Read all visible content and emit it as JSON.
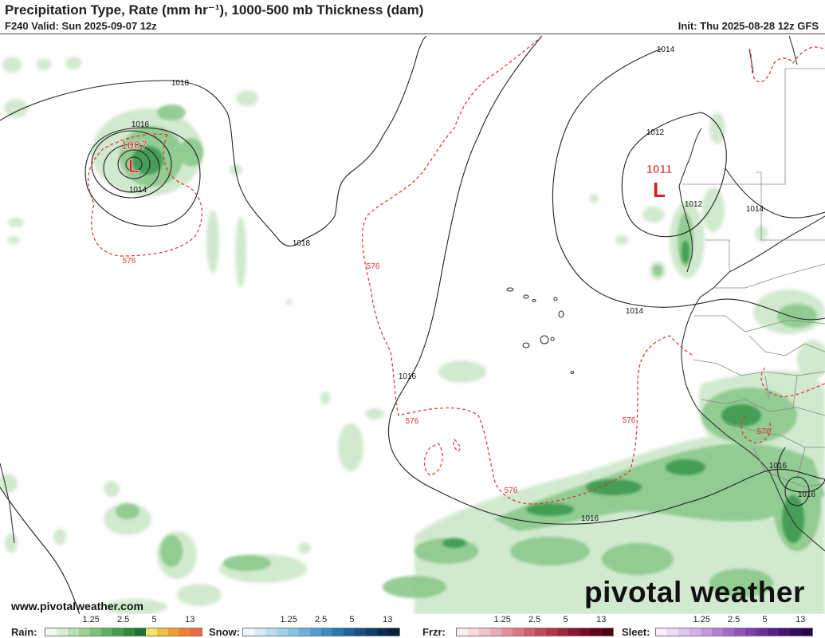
{
  "header": {
    "title": "Precipitation Type, Rate (mm hr⁻¹), 1000-500 mb Thickness (dam)",
    "valid": "F240 Valid: Sun 2025-09-07 12z",
    "init": "Init: Thu 2025-08-28 12z GFS"
  },
  "map": {
    "lows": [
      {
        "pressure": "1007",
        "symbol": "L"
      },
      {
        "pressure": "1011",
        "symbol": "L"
      }
    ],
    "isobar_labels": [
      "1018",
      "1016",
      "1014",
      "1018",
      "1014",
      "1012",
      "1012",
      "1014",
      "1014",
      "1016",
      "1016",
      "1016",
      "1016"
    ],
    "thickness_labels": [
      "576",
      "576",
      "576",
      "576",
      "576",
      "576"
    ],
    "colors": {
      "isobar": "#222222",
      "thickness": "#e03030",
      "rain_light": "#cfe8cc",
      "rain_mid": "#8cc98c",
      "rain_heavy": "#3d9a50",
      "coast": "#333333",
      "border": "#888888",
      "low_label": "#d42020"
    }
  },
  "footer": {
    "website": "www.pivotalweather.com",
    "brand": "pivotal weather"
  },
  "legend": [
    {
      "label": "Rain:",
      "ticks": [
        "1.25",
        "2.5",
        "5",
        "13"
      ],
      "colors": [
        "#f2faf0",
        "#d6efd0",
        "#b9e2b2",
        "#9bd394",
        "#7cc277",
        "#5fb05c",
        "#43a047",
        "#2e8b3a",
        "#1c7430",
        "#f7e36b",
        "#f2c040",
        "#f0a030",
        "#ee8030",
        "#f06a40"
      ]
    },
    {
      "label": "Snow:",
      "ticks": [
        "1.25",
        "2.5",
        "5",
        "13"
      ],
      "colors": [
        "#eef6fc",
        "#d6ebf7",
        "#bddff2",
        "#a2d2ec",
        "#86c2e4",
        "#6bb1db",
        "#519fd0",
        "#3c8bc2",
        "#2a77b1",
        "#1d629c",
        "#154f85",
        "#0f3e6d",
        "#0a2f57",
        "#062242"
      ]
    },
    {
      "label": "Frzr:",
      "ticks": [
        "1.25",
        "2.5",
        "5",
        "13"
      ],
      "colors": [
        "#fdeef0",
        "#f9d9de",
        "#f4c2ca",
        "#eeaab5",
        "#e6909f",
        "#dc7789",
        "#d05f74",
        "#c24860",
        "#b2344e",
        "#a0233f",
        "#8c1632",
        "#770b26",
        "#62051c",
        "#4c0213"
      ]
    },
    {
      "label": "Sleet:",
      "ticks": [
        "1.25",
        "2.5",
        "5",
        "13"
      ],
      "colors": [
        "#f6eefa",
        "#ecdcf5",
        "#e0c7ef",
        "#d3b0e8",
        "#c598df",
        "#b580d4",
        "#a46ac8",
        "#9154ba",
        "#7d40aa",
        "#6a2f98",
        "#572085",
        "#461571",
        "#360c5d",
        "#280649"
      ]
    }
  ]
}
